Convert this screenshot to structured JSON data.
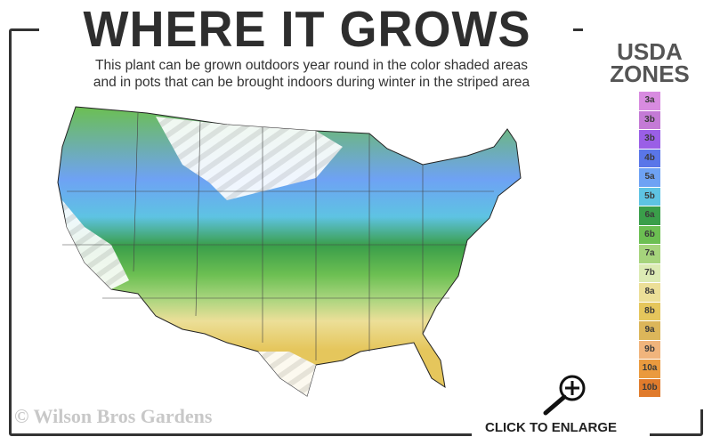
{
  "title": "WHERE IT GROWS",
  "subtitle_line1": "This plant can be grown outdoors year round in the color shaded areas",
  "subtitle_line2": "and in pots that can be brought indoors during winter in the striped area",
  "legend": {
    "title_line1": "USDA",
    "title_line2": "ZONES",
    "zones": [
      {
        "label": "3a",
        "color": "#d88be0"
      },
      {
        "label": "3b",
        "color": "#c47ad6"
      },
      {
        "label": "3b",
        "color": "#9a5fe6"
      },
      {
        "label": "4b",
        "color": "#5a76e8"
      },
      {
        "label": "5a",
        "color": "#6ea2f4"
      },
      {
        "label": "5b",
        "color": "#5ec3e3"
      },
      {
        "label": "6a",
        "color": "#3a9e4a"
      },
      {
        "label": "6b",
        "color": "#6cbf52"
      },
      {
        "label": "7a",
        "color": "#a6d47c"
      },
      {
        "label": "7b",
        "color": "#dcebb4"
      },
      {
        "label": "8a",
        "color": "#ecdf98"
      },
      {
        "label": "8b",
        "color": "#e5c65c"
      },
      {
        "label": "9a",
        "color": "#dcb65a"
      },
      {
        "label": "9b",
        "color": "#f0b47c"
      },
      {
        "label": "10a",
        "color": "#ea9a3e"
      },
      {
        "label": "10b",
        "color": "#e07b2c"
      }
    ]
  },
  "copyright": "© Wilson Bros Gardens",
  "enlarge_label": "CLICK TO ENLARGE",
  "icons": {
    "enlarge": "magnifier-plus-icon"
  }
}
